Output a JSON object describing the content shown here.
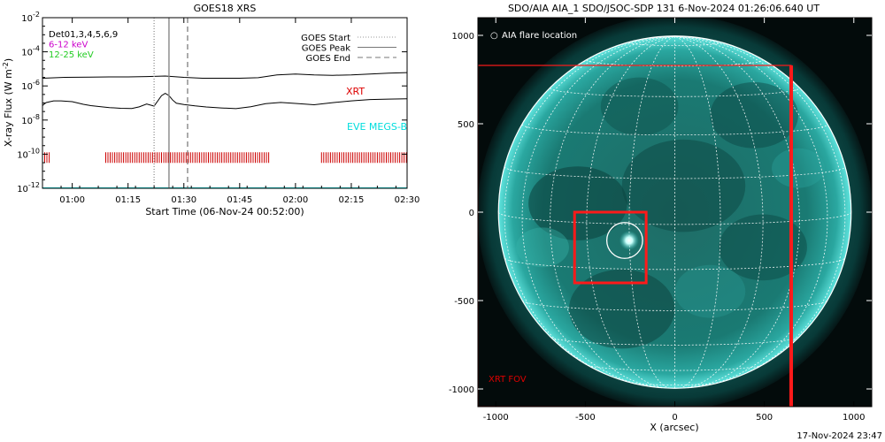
{
  "footer": {
    "timestamp": "17-Nov-2024 23:47"
  },
  "chart_data": [
    {
      "type": "line",
      "title": "GOES18 XRS",
      "xlabel": "Start Time (06-Nov-24 00:52:00)",
      "ylabel": "X-ray Flux (W m",
      "ylabel_sup": "-2",
      "ylabel_close": ")",
      "y_scale": "log",
      "ylim_exp": [
        -12,
        -2
      ],
      "y_ticks": [
        {
          "exp": -2,
          "base": "10",
          "sup": "-2"
        },
        {
          "exp": -4,
          "base": "10",
          "sup": "-4"
        },
        {
          "exp": -6,
          "base": "10",
          "sup": "-6"
        },
        {
          "exp": -8,
          "base": "10",
          "sup": "-8"
        },
        {
          "exp": -10,
          "base": "10",
          "sup": "-10"
        },
        {
          "exp": -12,
          "base": "10",
          "sup": "-12"
        }
      ],
      "xlim": [
        "00:52",
        "02:30"
      ],
      "x_ticks": [
        {
          "t": "01:00",
          "label": "01:00"
        },
        {
          "t": "01:15",
          "label": "01:15"
        },
        {
          "t": "01:30",
          "label": "01:30"
        },
        {
          "t": "01:45",
          "label": "01:45"
        },
        {
          "t": "02:00",
          "label": "02:00"
        },
        {
          "t": "02:15",
          "label": "02:15"
        },
        {
          "t": "02:30",
          "label": "02:30"
        }
      ],
      "legend_left": [
        {
          "text": "Det01,3,4,5,6,9",
          "color": "#000000"
        },
        {
          "text": "6-12 keV",
          "color": "#cc00cc"
        },
        {
          "text": "12-25 keV",
          "color": "#22cc22"
        }
      ],
      "legend_right": [
        {
          "text": "GOES Start",
          "style": "dotted",
          "color": "#999999"
        },
        {
          "text": "GOES Peak",
          "style": "solid",
          "color": "#777777"
        },
        {
          "text": "GOES End",
          "style": "dashed",
          "color": "#777777"
        }
      ],
      "annotations": [
        {
          "text": "XRT",
          "color": "#dd0000"
        },
        {
          "text": "EVE MEGS-B",
          "color": "#00dddd"
        }
      ],
      "event_lines": {
        "start": "01:22",
        "peak": "01:26",
        "end": "01:31"
      },
      "series": [
        {
          "name": "",
          "color": "#000000",
          "points": [
            [
              "00:52",
              -5.55
            ],
            [
              "00:58",
              -5.5
            ],
            [
              "01:05",
              -5.48
            ],
            [
              "01:10",
              -5.47
            ],
            [
              "01:15",
              -5.47
            ],
            [
              "01:20",
              -5.45
            ],
            [
              "01:25",
              -5.42
            ],
            [
              "01:30",
              -5.5
            ],
            [
              "01:35",
              -5.55
            ],
            [
              "01:40",
              -5.55
            ],
            [
              "01:45",
              -5.55
            ],
            [
              "01:50",
              -5.52
            ],
            [
              "01:55",
              -5.35
            ],
            [
              "02:00",
              -5.3
            ],
            [
              "02:05",
              -5.35
            ],
            [
              "02:10",
              -5.38
            ],
            [
              "02:15",
              -5.35
            ],
            [
              "02:20",
              -5.3
            ],
            [
              "02:25",
              -5.25
            ],
            [
              "02:30",
              -5.22
            ]
          ]
        },
        {
          "name": "",
          "color": "#000000",
          "points": [
            [
              "00:52",
              -7.15
            ],
            [
              "00:53",
              -7.0
            ],
            [
              "00:55",
              -6.9
            ],
            [
              "00:57",
              -6.88
            ],
            [
              "01:00",
              -6.9
            ],
            [
              "01:03",
              -7.05
            ],
            [
              "01:05",
              -7.15
            ],
            [
              "01:08",
              -7.25
            ],
            [
              "01:10",
              -7.3
            ],
            [
              "01:13",
              -7.32
            ],
            [
              "01:16",
              -7.3
            ],
            [
              "01:18",
              -7.2
            ],
            [
              "01:20",
              -7.05
            ],
            [
              "01:22",
              -7.2
            ],
            [
              "01:24",
              -6.6
            ],
            [
              "01:25",
              -6.45
            ],
            [
              "01:26",
              -6.55
            ],
            [
              "01:27",
              -6.8
            ],
            [
              "01:28",
              -7.0
            ],
            [
              "01:30",
              -7.1
            ],
            [
              "01:33",
              -7.2
            ],
            [
              "01:36",
              -7.25
            ],
            [
              "01:40",
              -7.28
            ],
            [
              "01:44",
              -7.3
            ],
            [
              "01:48",
              -7.2
            ],
            [
              "01:52",
              -7.05
            ],
            [
              "01:56",
              -7.0
            ],
            [
              "02:00",
              -7.05
            ],
            [
              "02:05",
              -7.1
            ],
            [
              "02:10",
              -6.95
            ],
            [
              "02:15",
              -6.85
            ],
            [
              "02:20",
              -6.8
            ],
            [
              "02:25",
              -6.8
            ],
            [
              "02:30",
              -6.75
            ]
          ]
        },
        {
          "name": "",
          "color": "#00dddd",
          "points": [
            [
              "00:52",
              -12.0
            ],
            [
              "02:30",
              -12.0
            ]
          ]
        }
      ],
      "xrt_intervals": [
        [
          "00:52",
          "00:54"
        ],
        [
          "01:09",
          "01:53"
        ],
        [
          "02:07",
          "02:30"
        ]
      ],
      "xrt_level_exp": -10.2
    },
    {
      "type": "map",
      "title": "SDO/AIA AIA_1 SDO/JSOC-SDP 131  6-Nov-2024 01:26:06.640 UT",
      "xlabel": "X (arcsec)",
      "ylabel": "",
      "xlim": [
        -1100,
        1100
      ],
      "ylim": [
        -1100,
        1100
      ],
      "x_ticks": [
        -1000,
        -500,
        0,
        500,
        1000
      ],
      "y_ticks": [
        1000,
        500,
        0,
        -500,
        -1000
      ],
      "legend": {
        "symbol": "○",
        "text": "AIA flare location",
        "color": "#ffffff"
      },
      "fov_label": {
        "text": "XRT FOV",
        "color": "#dd0000"
      },
      "solar_radius_arcsec": 985,
      "xrt_fov": {
        "x0": -1100,
        "x1": 650,
        "y0": -1100,
        "y1": 830
      },
      "zoom_box": {
        "x0": -560,
        "x1": -160,
        "y0": -400,
        "y1": 0
      },
      "flare_location": {
        "x": -280,
        "y": -160,
        "r": 100
      },
      "colors": {
        "disk": "#0f6c67",
        "limb": "#3fd6d0",
        "box": "#ff1a1a"
      }
    }
  ]
}
